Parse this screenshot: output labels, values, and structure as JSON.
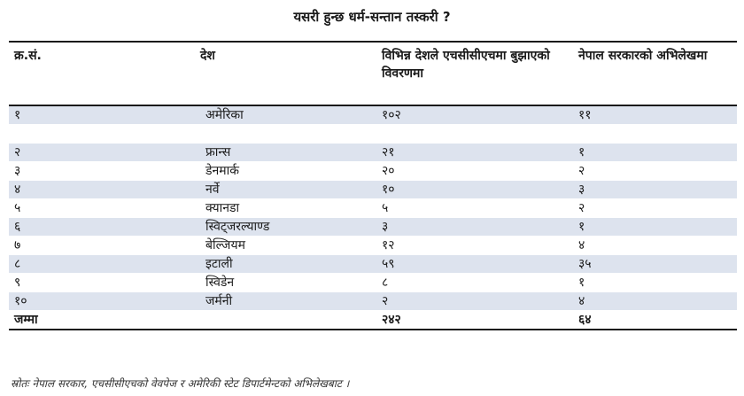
{
  "title": "यसरी हुन्छ धर्म-सन्तान तस्करी ?",
  "table": {
    "headers": [
      "क्र.सं.",
      "देश",
      "विभिन्न देशले एचसीसीएचमा बुझाएको विवरणमा",
      "नेपाल सरकारको अभिलेखमा"
    ],
    "rows": [
      {
        "sn": "१",
        "country": "अमेरिका",
        "hcch": "१०२",
        "nepal": "११",
        "shaded": true
      },
      {
        "sn": "",
        "country": "",
        "hcch": "",
        "nepal": "",
        "shaded": false
      },
      {
        "sn": "२",
        "country": "फ्रान्स",
        "hcch": "२१",
        "nepal": "१",
        "shaded": true
      },
      {
        "sn": "३",
        "country": "डेनमार्क",
        "hcch": "२०",
        "nepal": "२",
        "shaded": false
      },
      {
        "sn": "४",
        "country": "नर्वे",
        "hcch": "१०",
        "nepal": "३",
        "shaded": true
      },
      {
        "sn": "५",
        "country": "क्यानडा",
        "hcch": "५",
        "nepal": "२",
        "shaded": false
      },
      {
        "sn": "६",
        "country": "स्विट्जरल्याण्ड",
        "hcch": "३",
        "nepal": "१",
        "shaded": true
      },
      {
        "sn": "७",
        "country": "बेल्जियम",
        "hcch": "१२",
        "nepal": "४",
        "shaded": false
      },
      {
        "sn": "८",
        "country": "इटाली",
        "hcch": "५९",
        "nepal": "३५",
        "shaded": true
      },
      {
        "sn": "९",
        "country": "स्विडेन",
        "hcch": "८",
        "nepal": "१",
        "shaded": false
      },
      {
        "sn": "१०",
        "country": "जर्मनी",
        "hcch": "२",
        "nepal": "४",
        "shaded": true
      }
    ],
    "total": {
      "label": "जम्मा",
      "hcch": "२४२",
      "nepal": "६४"
    }
  },
  "source": "स्रोतः नेपाल सरकार, एचसीसीएचको वेवपेज र अमेरिकी स्टेट डिपार्टमेन्टको अभिलेखबाट ।"
}
